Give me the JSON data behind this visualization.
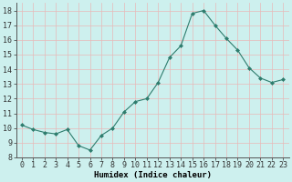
{
  "x": [
    0,
    1,
    2,
    3,
    4,
    5,
    6,
    7,
    8,
    9,
    10,
    11,
    12,
    13,
    14,
    15,
    16,
    17,
    18,
    19,
    20,
    21,
    22,
    23
  ],
  "y": [
    10.2,
    9.9,
    9.7,
    9.6,
    9.9,
    8.8,
    8.5,
    9.5,
    10.0,
    11.1,
    11.8,
    12.0,
    13.1,
    14.8,
    15.6,
    17.8,
    18.0,
    17.0,
    16.1,
    15.3,
    14.1,
    13.4,
    13.1,
    13.3
  ],
  "line_color": "#2e7d6e",
  "marker": "D",
  "marker_size": 2.0,
  "bg_color": "#cdf0ee",
  "grid_major_color": "#e8b8b8",
  "grid_minor_color": "#e8d0d0",
  "xlabel": "Humidex (Indice chaleur)",
  "xlim": [
    -0.5,
    23.5
  ],
  "ylim": [
    8,
    18.5
  ],
  "yticks": [
    8,
    9,
    10,
    11,
    12,
    13,
    14,
    15,
    16,
    17,
    18
  ],
  "xticks": [
    0,
    1,
    2,
    3,
    4,
    5,
    6,
    7,
    8,
    9,
    10,
    11,
    12,
    13,
    14,
    15,
    16,
    17,
    18,
    19,
    20,
    21,
    22,
    23
  ],
  "xlabel_fontsize": 6.5,
  "tick_fontsize": 6
}
